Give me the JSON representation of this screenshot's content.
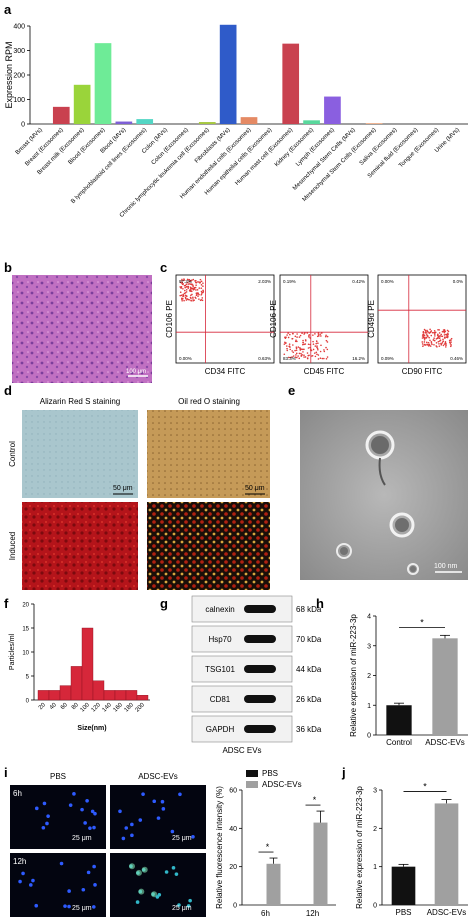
{
  "panels": {
    "a": "a",
    "b": "b",
    "c": "c",
    "d": "d",
    "e": "e",
    "f": "f",
    "g": "g",
    "h": "h",
    "i": "i",
    "j": "j"
  },
  "chart_data": [
    {
      "id": "a",
      "type": "bar",
      "ylabel": "Expression RPM",
      "ylim": [
        0,
        400
      ],
      "yticks": [
        0,
        100,
        200,
        300,
        400
      ],
      "categories": [
        "Breast (MVs)",
        "Breast (Exosomes)",
        "Breast milk (Exosomes)",
        "Blood (Exosomes)",
        "Blood (MVs)",
        "B lymphoblastoid cell lines (Exosomes)",
        "Colon (MVs)",
        "Colon (Exosomes)",
        "Chronic lymphocytic leukemia cell (Exosomes)",
        "Fibroblasts (MVs)",
        "Human endothelial cells (Exosomes)",
        "Human epithelial cells (Exosomes)",
        "Human mast cell (Exosomes)",
        "Kidney (Exosomes)",
        "Lymph (Exosomes)",
        "Mesenchymal Stem Cells (MVs)",
        "Mesenchymal Stem Cells (Exosomes)",
        "Saliva (Exosomes)",
        "Seminal fluid (Exosomes)",
        "Tongue (Exosomes)",
        "Urine (MVs)"
      ],
      "values": [
        0,
        70,
        160,
        330,
        10,
        20,
        0,
        0,
        8,
        405,
        28,
        0,
        328,
        15,
        112,
        0,
        3,
        0,
        0,
        0,
        0
      ],
      "colors": [
        "#c9414f",
        "#c9414f",
        "#9ad43a",
        "#6eeb97",
        "#7e5fd6",
        "#53d6c4",
        "#cccccc",
        "#cccccc",
        "#a6c840",
        "#2f5bc9",
        "#e58a64",
        "#cccccc",
        "#c9414f",
        "#58d89c",
        "#8a5fe0",
        "#cccccc",
        "#e89a6a",
        "#cccccc",
        "#cccccc",
        "#cccccc",
        "#cccccc"
      ]
    },
    {
      "id": "f",
      "type": "bar",
      "xlabel": "Size(nm)",
      "ylabel": "Particles/ml",
      "ylim": [
        0,
        20
      ],
      "yticks": [
        0,
        5,
        10,
        15,
        20
      ],
      "categories": [
        "20",
        "40",
        "60",
        "80",
        "100",
        "120",
        "140",
        "160",
        "180",
        "200"
      ],
      "values": [
        2,
        2,
        3,
        7,
        15,
        4,
        2,
        2,
        2,
        1
      ],
      "color": "#d6273a"
    },
    {
      "id": "h",
      "type": "bar",
      "ylabel": "Relative expression of miR-223-3p",
      "ylim": [
        0,
        4
      ],
      "yticks": [
        0,
        1,
        2,
        3,
        4
      ],
      "categories": [
        "Control",
        "ADSC-EVs"
      ],
      "values": [
        1.0,
        3.25
      ],
      "errors": [
        0.07,
        0.1
      ],
      "colors": [
        "#111111",
        "#a0a0a0"
      ],
      "significance": "*"
    },
    {
      "id": "i",
      "type": "bar",
      "ylabel": "Relative fluorescence intensity (%)",
      "ylim": [
        0,
        60
      ],
      "yticks": [
        0,
        20,
        40,
        60
      ],
      "categories": [
        "6h",
        "12h"
      ],
      "series": [
        {
          "name": "PBS",
          "values": [
            0,
            0
          ],
          "color": "#111111"
        },
        {
          "name": "ADSC-EVs",
          "values": [
            21.5,
            43
          ],
          "errors": [
            3,
            6
          ],
          "color": "#a0a0a0"
        }
      ],
      "significance": [
        "*",
        "*"
      ]
    },
    {
      "id": "j",
      "type": "bar",
      "ylabel": "Relative expression of miR-223-3p",
      "ylim": [
        0,
        3
      ],
      "yticks": [
        0,
        1,
        2,
        3
      ],
      "categories": [
        "PBS",
        "ADSC-EVs"
      ],
      "values": [
        1.0,
        2.65
      ],
      "errors": [
        0.06,
        0.1
      ],
      "colors": [
        "#111111",
        "#a0a0a0"
      ],
      "significance": "*"
    }
  ],
  "flow": {
    "plots": [
      {
        "ylabel": "CD106 PE",
        "xlabel": "CD34 FITC",
        "q": [
          "97.2%",
          "2.03%",
          "0.00%",
          "0.63%"
        ]
      },
      {
        "ylabel": "CD106 PE",
        "xlabel": "CD45 FITC",
        "q": [
          "0.19%",
          "0.42%",
          "83.3%",
          "16.2%"
        ]
      },
      {
        "ylabel": "CD49d PE",
        "xlabel": "CD90 FITC",
        "q": [
          "0.00%",
          "0.0%",
          "0.09%",
          "0.46%"
        ]
      }
    ]
  },
  "staining": {
    "col1": "Alizarin Red S staining",
    "col2": "Oil red O staining",
    "row1": "Control",
    "row2": "Induced",
    "scale": "50 μm"
  },
  "micro_b": {
    "scale": "100 μm"
  },
  "tem": {
    "scale": "100 nm"
  },
  "western": {
    "bands": [
      {
        "name": "calnexin",
        "kda": "68 kDa"
      },
      {
        "name": "Hsp70",
        "kda": "70 kDa"
      },
      {
        "name": "TSG101",
        "kda": "44 kDa"
      },
      {
        "name": "CD81",
        "kda": "26 kDa"
      },
      {
        "name": "GAPDH",
        "kda": "36 kDa"
      }
    ],
    "caption": "ADSC EVs"
  },
  "fluor": {
    "col1": "PBS",
    "col2": "ADSC-EVs",
    "row1": "6h",
    "row2": "12h",
    "scale": "25 μm"
  }
}
